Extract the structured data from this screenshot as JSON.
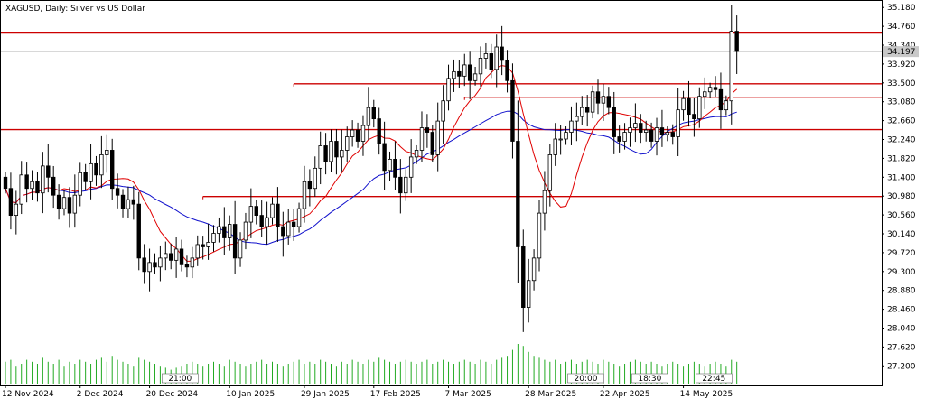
{
  "chart_data": {
    "type": "candlestick",
    "title": "XAGUSD, Daily:  Silver vs US Dollar",
    "current_price_label": "34.197",
    "ylim": [
      26.9,
      35.35
    ],
    "y_ticks": [
      "35.180",
      "34.760",
      "34.340",
      "33.920",
      "33.500",
      "33.080",
      "32.660",
      "32.240",
      "31.820",
      "31.400",
      "30.980",
      "30.560",
      "30.140",
      "29.720",
      "29.300",
      "28.880",
      "28.460",
      "28.040",
      "27.620",
      "27.200"
    ],
    "x_ticks": [
      "12 Nov 2024",
      "2 Dec 2024",
      "20 Dec 2024",
      "10 Jan 2025",
      "29 Jan 2025",
      "17 Feb 2025",
      "7 Mar 2025",
      "28 Mar 2025",
      "22 Apr 2025",
      "14 May 2025"
    ],
    "x_tick_bar_index": [
      0,
      14,
      27,
      42,
      56,
      69,
      83,
      98,
      112,
      127
    ],
    "time_markers": [
      "21:00",
      "20:00",
      "18:30",
      "22:45"
    ],
    "time_marker_bar_index": [
      30,
      106,
      118,
      130
    ],
    "horizontal_levels": [
      {
        "value": 34.61,
        "start_bar": 0
      },
      {
        "value": 33.48,
        "start_bar": 54
      },
      {
        "value": 33.18,
        "start_bar": 86
      },
      {
        "value": 32.46,
        "start_bar": 0
      },
      {
        "value": 30.97,
        "start_bar": 37
      }
    ],
    "colors": {
      "candle": "#000000",
      "level": "#cc0000",
      "ma_fast": "#e00000",
      "ma_slow": "#1010cc",
      "volume": "#22aa22",
      "grid_price": "#c0c0c0"
    },
    "series": [
      {
        "kind": "ohlc",
        "close": [
          31.15,
          30.55,
          30.8,
          31.45,
          31.15,
          31.3,
          31.05,
          31.65,
          31.4,
          31.0,
          30.7,
          30.95,
          30.6,
          31.0,
          31.5,
          31.3,
          31.7,
          31.45,
          31.9,
          32.0,
          31.15,
          31.0,
          30.7,
          30.9,
          30.8,
          29.6,
          29.3,
          29.5,
          29.4,
          29.6,
          29.7,
          29.55,
          29.8,
          29.45,
          29.4,
          29.6,
          29.9,
          29.85,
          29.95,
          30.15,
          30.3,
          30.05,
          30.35,
          29.6,
          30.0,
          30.4,
          30.75,
          30.55,
          30.3,
          30.5,
          30.8,
          30.3,
          30.1,
          30.4,
          30.3,
          30.7,
          31.3,
          31.15,
          31.6,
          32.1,
          31.75,
          32.2,
          31.85,
          32.0,
          32.3,
          32.45,
          32.2,
          32.55,
          32.95,
          32.7,
          32.15,
          31.55,
          31.8,
          31.4,
          31.05,
          31.4,
          31.85,
          32.0,
          32.5,
          32.4,
          31.9,
          32.65,
          33.1,
          33.6,
          33.75,
          33.65,
          33.9,
          33.55,
          33.7,
          34.05,
          34.15,
          33.8,
          34.3,
          34.0,
          33.55,
          32.2,
          29.85,
          28.5,
          29.1,
          29.6,
          30.6,
          31.1,
          31.9,
          32.25,
          32.25,
          32.4,
          32.65,
          32.75,
          32.95,
          32.85,
          33.3,
          33.05,
          33.2,
          32.95,
          32.3,
          32.2,
          32.4,
          32.5,
          32.6,
          32.4,
          32.45,
          32.2,
          32.5,
          32.35,
          32.4,
          32.3,
          32.9,
          33.15,
          32.8,
          32.7,
          33.2,
          33.3,
          33.4,
          33.35,
          32.9,
          33.1,
          34.65,
          34.2
        ],
        "volume_rel": [
          0.55,
          0.6,
          0.45,
          0.5,
          0.6,
          0.55,
          0.5,
          0.65,
          0.55,
          0.5,
          0.6,
          0.45,
          0.55,
          0.5,
          0.6,
          0.55,
          0.5,
          0.6,
          0.65,
          0.55,
          0.7,
          0.6,
          0.55,
          0.5,
          0.45,
          0.65,
          0.6,
          0.55,
          0.5,
          0.45,
          0.4,
          0.35,
          0.4,
          0.45,
          0.5,
          0.55,
          0.5,
          0.45,
          0.5,
          0.55,
          0.5,
          0.45,
          0.6,
          0.55,
          0.5,
          0.45,
          0.5,
          0.55,
          0.6,
          0.5,
          0.55,
          0.5,
          0.45,
          0.5,
          0.55,
          0.6,
          0.5,
          0.55,
          0.5,
          0.6,
          0.55,
          0.5,
          0.45,
          0.55,
          0.5,
          0.6,
          0.55,
          0.5,
          0.6,
          0.55,
          0.65,
          0.6,
          0.55,
          0.5,
          0.55,
          0.6,
          0.55,
          0.5,
          0.55,
          0.6,
          0.5,
          0.55,
          0.6,
          0.55,
          0.5,
          0.55,
          0.6,
          0.55,
          0.5,
          0.6,
          0.55,
          0.5,
          0.6,
          0.65,
          0.7,
          0.85,
          1.0,
          0.95,
          0.8,
          0.7,
          0.65,
          0.6,
          0.55,
          0.6,
          0.5,
          0.55,
          0.6,
          0.5,
          0.55,
          0.6,
          0.55,
          0.5,
          0.6,
          0.55,
          0.5,
          0.45,
          0.5,
          0.55,
          0.6,
          0.55,
          0.5,
          0.55,
          0.5,
          0.45,
          0.5,
          0.55,
          0.5,
          0.45,
          0.5,
          0.55,
          0.5,
          0.45,
          0.5,
          0.55,
          0.5,
          0.45,
          0.6,
          0.55
        ]
      },
      {
        "name": "MA fast",
        "kind": "line",
        "color": "#e00000"
      },
      {
        "name": "MA slow",
        "kind": "line",
        "color": "#1010cc"
      }
    ]
  }
}
